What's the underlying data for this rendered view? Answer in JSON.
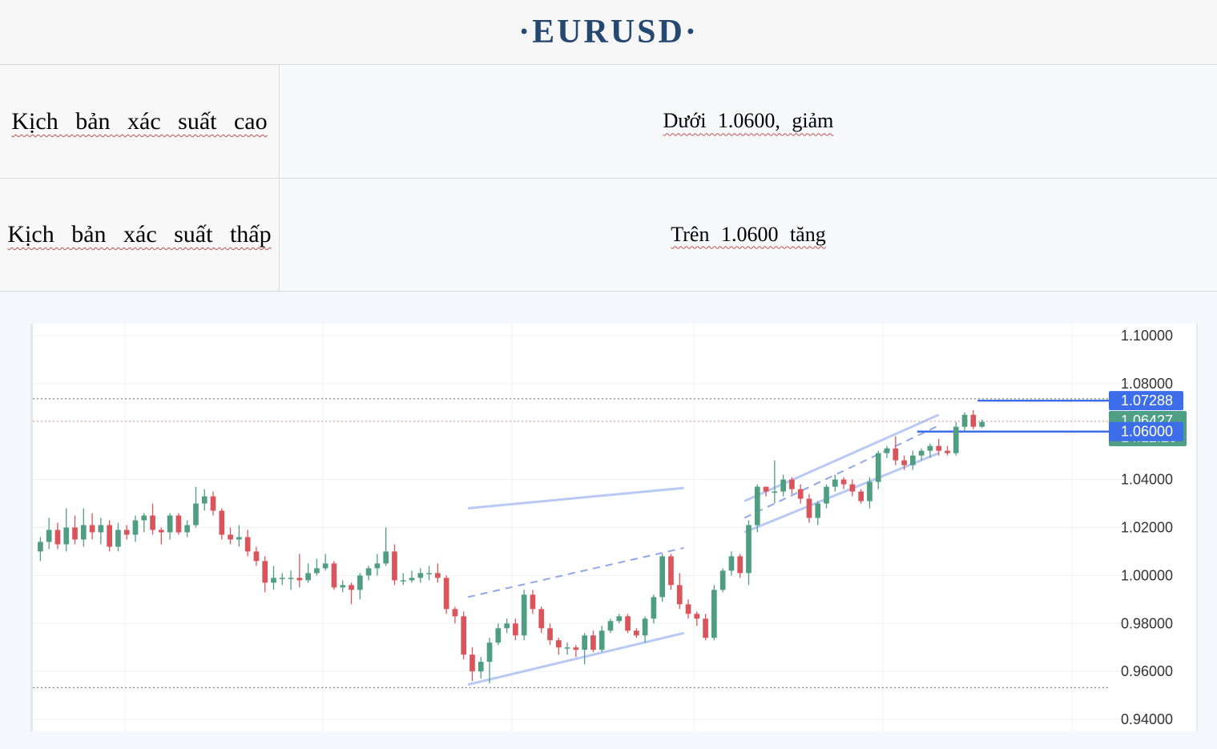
{
  "page": {
    "title": "·EURUSD·"
  },
  "scenarios": [
    {
      "label": "Kịch bản xác suất cao",
      "value": "Dưới 1.0600, giảm"
    },
    {
      "label": "Kịch bản xác suất thấp",
      "value": "Trên 1.0600 tăng"
    }
  ],
  "chart_data": {
    "type": "candlestick",
    "symbol": "EURUSD",
    "y_ticks": [
      "1.10000",
      "1.08000",
      "1.04000",
      "1.02000",
      "1.00000",
      "0.98000",
      "0.96000",
      "0.94000"
    ],
    "ylim": [
      0.935,
      1.105
    ],
    "grid": true,
    "price_labels": [
      {
        "text": "1.07288",
        "value": 1.07288,
        "color": "#3d6de8"
      },
      {
        "text": "1.06427",
        "value": 1.06427,
        "color": "#4f9f85",
        "sub": "14:12:20"
      },
      {
        "text": "1.06000",
        "value": 1.06,
        "color": "#3d6de8"
      }
    ],
    "horizontal_levels": [
      {
        "value": 1.07288,
        "style": "solid",
        "color": "#3d6de8"
      },
      {
        "value": 1.06,
        "style": "solid",
        "color": "#3d6de8"
      },
      {
        "value": 1.0737,
        "style": "dotted",
        "color": "#888888"
      },
      {
        "value": 1.0643,
        "style": "dotted",
        "color": "#e0a0a0"
      },
      {
        "value": 0.9532,
        "style": "dotted",
        "color": "#888888"
      }
    ],
    "candles": [
      [
        1.01,
        1.014,
        1.006,
        1.016
      ],
      [
        1.014,
        1.019,
        1.011,
        1.024
      ],
      [
        1.019,
        1.013,
        1.011,
        1.022
      ],
      [
        1.013,
        1.02,
        1.01,
        1.028
      ],
      [
        1.02,
        1.015,
        1.013,
        1.025
      ],
      [
        1.015,
        1.021,
        1.012,
        1.028
      ],
      [
        1.021,
        1.018,
        1.015,
        1.026
      ],
      [
        1.018,
        1.021,
        1.013,
        1.024
      ],
      [
        1.021,
        1.012,
        1.01,
        1.023
      ],
      [
        1.012,
        1.019,
        1.01,
        1.022
      ],
      [
        1.019,
        1.017,
        1.015,
        1.021
      ],
      [
        1.017,
        1.023,
        1.014,
        1.025
      ],
      [
        1.023,
        1.025,
        1.018,
        1.026
      ],
      [
        1.025,
        1.019,
        1.017,
        1.03
      ],
      [
        1.019,
        1.018,
        1.013,
        1.02
      ],
      [
        1.018,
        1.025,
        1.015,
        1.026
      ],
      [
        1.025,
        1.018,
        1.017,
        1.026
      ],
      [
        1.018,
        1.021,
        1.016,
        1.023
      ],
      [
        1.021,
        1.03,
        1.02,
        1.037
      ],
      [
        1.03,
        1.033,
        1.027,
        1.036
      ],
      [
        1.033,
        1.027,
        1.025,
        1.035
      ],
      [
        1.027,
        1.017,
        1.015,
        1.028
      ],
      [
        1.017,
        1.015,
        1.013,
        1.02
      ],
      [
        1.015,
        1.016,
        1.012,
        1.021
      ],
      [
        1.016,
        1.01,
        1.008,
        1.019
      ],
      [
        1.01,
        1.006,
        1.004,
        1.012
      ],
      [
        1.006,
        0.997,
        0.993,
        1.008
      ],
      [
        0.997,
        0.999,
        0.994,
        1.004
      ],
      [
        0.999,
        0.999,
        0.996,
        1.001
      ],
      [
        0.999,
        0.999,
        0.994,
        1.002
      ],
      [
        0.999,
        0.998,
        0.995,
        1.009
      ],
      [
        0.998,
        1.001,
        0.997,
        1.005
      ],
      [
        1.001,
        1.003,
        1.0,
        1.007
      ],
      [
        1.003,
        1.005,
        1.002,
        1.009
      ],
      [
        1.005,
        0.995,
        0.994,
        1.006
      ],
      [
        0.995,
        0.996,
        0.993,
        0.998
      ],
      [
        0.996,
        0.994,
        0.988,
        0.997
      ],
      [
        0.994,
        1.0,
        0.99,
        1.001
      ],
      [
        1.0,
        1.003,
        0.998,
        1.004
      ],
      [
        1.003,
        1.005,
        1.0,
        1.009
      ],
      [
        1.005,
        1.01,
        1.004,
        1.02
      ],
      [
        1.01,
        0.998,
        0.996,
        1.013
      ],
      [
        0.998,
        0.998,
        0.996,
        1.001
      ],
      [
        0.998,
        0.999,
        0.997,
        1.002
      ],
      [
        0.999,
        1.001,
        0.997,
        1.003
      ],
      [
        1.001,
        1.001,
        0.998,
        1.004
      ],
      [
        1.001,
        0.999,
        0.997,
        1.005
      ],
      [
        0.999,
        0.986,
        0.984,
        1.0
      ],
      [
        0.986,
        0.983,
        0.98,
        0.987
      ],
      [
        0.983,
        0.967,
        0.965,
        0.985
      ],
      [
        0.967,
        0.96,
        0.956,
        0.97
      ],
      [
        0.96,
        0.964,
        0.957,
        0.966
      ],
      [
        0.964,
        0.972,
        0.955,
        0.974
      ],
      [
        0.972,
        0.978,
        0.971,
        0.98
      ],
      [
        0.978,
        0.98,
        0.976,
        0.982
      ],
      [
        0.98,
        0.975,
        0.973,
        0.982
      ],
      [
        0.975,
        0.992,
        0.973,
        0.994
      ],
      [
        0.992,
        0.986,
        0.984,
        0.994
      ],
      [
        0.986,
        0.978,
        0.976,
        0.987
      ],
      [
        0.978,
        0.973,
        0.971,
        0.98
      ],
      [
        0.973,
        0.97,
        0.967,
        0.974
      ],
      [
        0.97,
        0.97,
        0.967,
        0.972
      ],
      [
        0.97,
        0.969,
        0.966,
        0.971
      ],
      [
        0.969,
        0.975,
        0.963,
        0.976
      ],
      [
        0.975,
        0.969,
        0.968,
        0.977
      ],
      [
        0.969,
        0.977,
        0.968,
        0.979
      ],
      [
        0.977,
        0.981,
        0.976,
        0.982
      ],
      [
        0.981,
        0.983,
        0.98,
        0.984
      ],
      [
        0.983,
        0.977,
        0.976,
        0.984
      ],
      [
        0.977,
        0.975,
        0.974,
        0.978
      ],
      [
        0.975,
        0.982,
        0.972,
        0.983
      ],
      [
        0.982,
        0.991,
        0.98,
        0.992
      ],
      [
        0.991,
        1.008,
        0.989,
        1.009
      ],
      [
        1.008,
        0.996,
        0.994,
        1.009
      ],
      [
        0.996,
        0.988,
        0.986,
        1.001
      ],
      [
        0.988,
        0.984,
        0.982,
        0.99
      ],
      [
        0.984,
        0.982,
        0.979,
        0.985
      ],
      [
        0.982,
        0.974,
        0.973,
        0.984
      ],
      [
        0.974,
        0.994,
        0.973,
        0.996
      ],
      [
        0.994,
        1.002,
        0.993,
        1.003
      ],
      [
        1.002,
        1.008,
        1.0,
        1.01
      ],
      [
        1.008,
        1.001,
        0.999,
        1.009
      ],
      [
        1.001,
        1.021,
        0.996,
        1.023
      ],
      [
        1.021,
        1.037,
        1.018,
        1.038
      ],
      [
        1.037,
        1.035,
        1.033,
        1.037
      ],
      [
        1.035,
        1.035,
        1.03,
        1.048
      ],
      [
        1.035,
        1.04,
        1.033,
        1.042
      ],
      [
        1.04,
        1.036,
        1.034,
        1.041
      ],
      [
        1.036,
        1.032,
        1.03,
        1.038
      ],
      [
        1.032,
        1.024,
        1.022,
        1.034
      ],
      [
        1.024,
        1.03,
        1.021,
        1.031
      ],
      [
        1.03,
        1.037,
        1.028,
        1.038
      ],
      [
        1.037,
        1.04,
        1.035,
        1.042
      ],
      [
        1.04,
        1.038,
        1.036,
        1.041
      ],
      [
        1.038,
        1.035,
        1.033,
        1.04
      ],
      [
        1.035,
        1.031,
        1.03,
        1.036
      ],
      [
        1.031,
        1.039,
        1.028,
        1.041
      ],
      [
        1.039,
        1.051,
        1.036,
        1.052
      ],
      [
        1.051,
        1.053,
        1.049,
        1.054
      ],
      [
        1.053,
        1.048,
        1.046,
        1.058
      ],
      [
        1.048,
        1.046,
        1.044,
        1.05
      ],
      [
        1.046,
        1.05,
        1.044,
        1.052
      ],
      [
        1.05,
        1.052,
        1.048,
        1.053
      ],
      [
        1.052,
        1.054,
        1.049,
        1.055
      ],
      [
        1.054,
        1.052,
        1.05,
        1.057
      ],
      [
        1.052,
        1.051,
        1.05,
        1.054
      ],
      [
        1.051,
        1.062,
        1.05,
        1.064
      ],
      [
        1.062,
        1.067,
        1.06,
        1.068
      ],
      [
        1.067,
        1.062,
        1.061,
        1.069
      ],
      [
        1.062,
        1.064,
        1.0615,
        1.065
      ]
    ],
    "annotations": [
      {
        "kind": "channel",
        "lines": [
          [
            [
              0,
              1.028
            ],
            [
              1,
              1.0365
            ]
          ],
          [
            [
              0,
              0.991
            ],
            [
              1,
              1.0115
            ]
          ],
          [
            [
              0,
              0.9545
            ],
            [
              1,
              0.976
            ]
          ]
        ]
      },
      {
        "kind": "channel",
        "lines": [
          [
            [
              0,
              1.031
            ],
            [
              1,
              1.067
            ]
          ],
          [
            [
              0,
              1.024
            ],
            [
              1,
              1.0625
            ]
          ],
          [
            [
              0,
              1.018
            ],
            [
              1,
              1.051
            ]
          ]
        ]
      }
    ]
  }
}
